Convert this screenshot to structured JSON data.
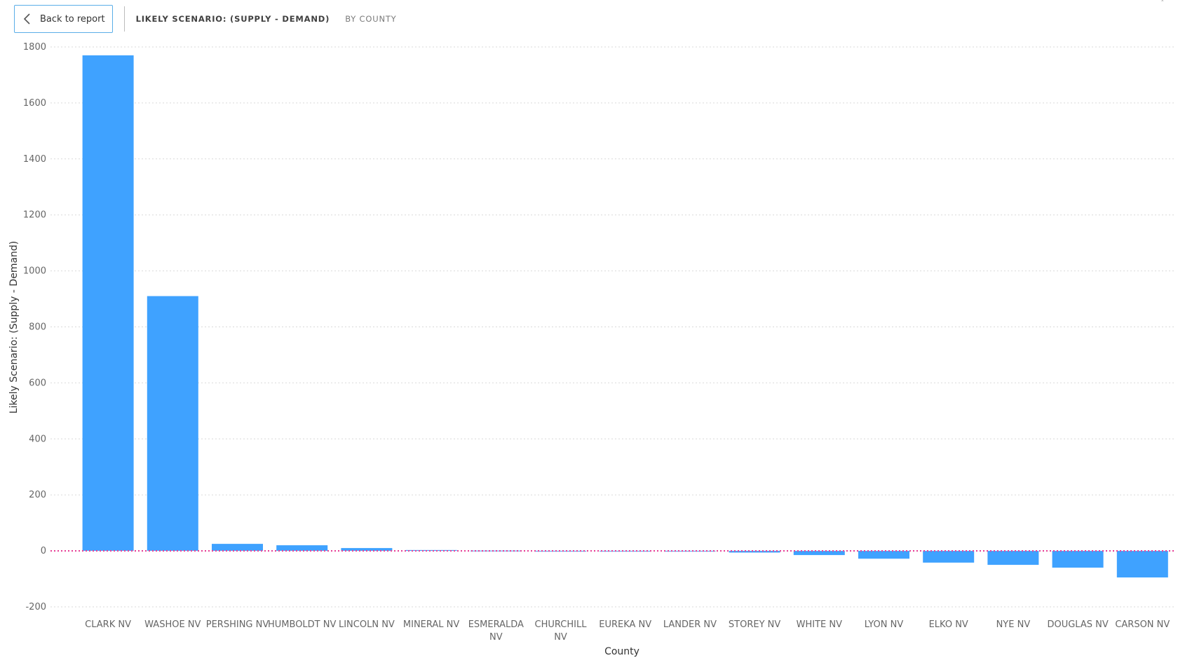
{
  "header": {
    "back_label": "Back to report",
    "title": "LIKELY SCENARIO: (SUPPLY - DEMAND)",
    "subtitle": "BY COUNTY"
  },
  "chart_data": {
    "type": "bar",
    "categories": [
      "CLARK NV",
      "WASHOE NV",
      "PERSHING NV",
      "HUMBOLDT NV",
      "LINCOLN NV",
      "MINERAL NV",
      "ESMERALDA NV",
      "CHURCHILL NV",
      "EUREKA NV",
      "LANDER NV",
      "STOREY NV",
      "WHITE NV",
      "LYON NV",
      "ELKO NV",
      "NYE NV",
      "DOUGLAS NV",
      "CARSON NV"
    ],
    "values": [
      1770,
      910,
      25,
      20,
      10,
      3,
      1,
      0,
      -1,
      -2,
      -6,
      -15,
      -28,
      -42,
      -50,
      -60,
      -95
    ],
    "xlabel": "County",
    "ylabel": "Likely Scenario: (Supply - Demand)",
    "ylim": [
      -200,
      1800
    ],
    "yticks": [
      -200,
      0,
      200,
      400,
      600,
      800,
      1000,
      1200,
      1400,
      1600,
      1800
    ],
    "grid": true,
    "bar_color": "#3fa2ff",
    "reference_line": {
      "value": 0,
      "color": "#e8489a",
      "style": "dotted"
    }
  }
}
